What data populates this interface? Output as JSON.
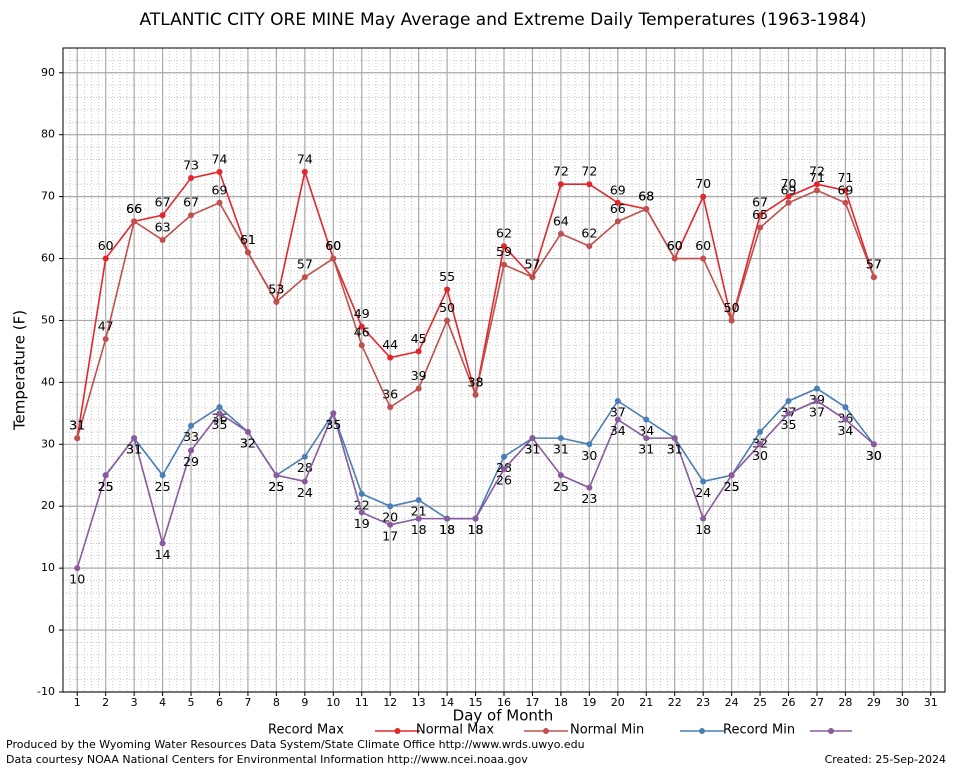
{
  "chart_data": {
    "type": "line",
    "title": "ATLANTIC CITY ORE MINE May Average and Extreme Daily Temperatures (1963-1984)",
    "xlabel": "Day of Month",
    "ylabel": "Temperature (F)",
    "x": [
      1,
      2,
      3,
      4,
      5,
      6,
      7,
      8,
      9,
      10,
      11,
      12,
      13,
      14,
      15,
      16,
      17,
      18,
      19,
      20,
      21,
      22,
      23,
      24,
      25,
      26,
      27,
      28,
      29,
      30,
      31
    ],
    "xlim": [
      0.5,
      31.5
    ],
    "xticks": [
      1,
      2,
      3,
      4,
      5,
      6,
      7,
      8,
      9,
      10,
      11,
      12,
      13,
      14,
      15,
      16,
      17,
      18,
      19,
      20,
      21,
      22,
      23,
      24,
      25,
      26,
      27,
      28,
      29,
      30,
      31
    ],
    "ylim": [
      -10,
      94
    ],
    "yticks": [
      -10,
      0,
      10,
      20,
      30,
      40,
      50,
      60,
      70,
      80,
      90
    ],
    "grid": true,
    "series": [
      {
        "name": "Record Max",
        "color": "#e3262c",
        "values": [
          31,
          60,
          66,
          67,
          73,
          74,
          61,
          53,
          74,
          60,
          49,
          44,
          45,
          55,
          38,
          62,
          57,
          72,
          72,
          69,
          68,
          60,
          70,
          50,
          67,
          70,
          72,
          71,
          57,
          null,
          null
        ]
      },
      {
        "name": "Normal Max",
        "color": "#c0504d",
        "values": [
          31,
          47,
          66,
          63,
          67,
          69,
          61,
          53,
          57,
          60,
          46,
          36,
          39,
          50,
          38,
          59,
          57,
          64,
          62,
          66,
          68,
          60,
          60,
          50,
          65,
          69,
          71,
          69,
          57,
          null,
          null
        ]
      },
      {
        "name": "Normal Min",
        "color": "#4a7fb5",
        "values": [
          null,
          25,
          31,
          25,
          33,
          36,
          32,
          25,
          28,
          35,
          22,
          20,
          21,
          18,
          18,
          28,
          31,
          31,
          30,
          37,
          34,
          31,
          24,
          25,
          32,
          37,
          39,
          36,
          30,
          null,
          null
        ]
      },
      {
        "name": "Record Min",
        "color": "#8a5a9e",
        "values": [
          10,
          25,
          31,
          14,
          29,
          35,
          32,
          25,
          24,
          35,
          19,
          17,
          18,
          18,
          18,
          26,
          31,
          25,
          23,
          34,
          31,
          31,
          18,
          25,
          30,
          35,
          37,
          34,
          30,
          null,
          null
        ]
      }
    ],
    "footer_left": [
      "Produced by the Wyoming Water Resources Data System/State Climate Office http://www.wrds.uwyo.edu",
      "Data courtesy NOAA National Centers for Environmental Information http://www.ncei.noaa.gov"
    ],
    "footer_right": "Created:  25-Sep-2024"
  }
}
